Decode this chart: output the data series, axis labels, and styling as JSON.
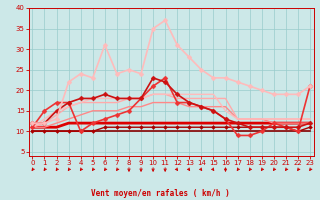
{
  "x": [
    0,
    1,
    2,
    3,
    4,
    5,
    6,
    7,
    8,
    9,
    10,
    11,
    12,
    13,
    14,
    15,
    16,
    17,
    18,
    19,
    20,
    21,
    22,
    23
  ],
  "series": [
    {
      "y": [
        11,
        11,
        11,
        12,
        12,
        12,
        12,
        12,
        12,
        12,
        12,
        12,
        12,
        12,
        12,
        12,
        12,
        12,
        12,
        12,
        12,
        12,
        12,
        12
      ],
      "color": "#dd0000",
      "lw": 2.0,
      "marker": null
    },
    {
      "y": [
        10,
        10,
        10,
        10,
        10,
        10,
        10,
        10,
        10,
        10,
        10,
        10,
        10,
        10,
        10,
        10,
        10,
        10,
        10,
        10,
        10,
        10,
        10,
        10
      ],
      "color": "#880000",
      "lw": 1.2,
      "marker": null
    },
    {
      "y": [
        11,
        11,
        12,
        13,
        14,
        15,
        15,
        15,
        16,
        16,
        17,
        17,
        17,
        16,
        16,
        16,
        16,
        13,
        13,
        13,
        12,
        12,
        12,
        12
      ],
      "color": "#ff8888",
      "lw": 1.0,
      "marker": null
    },
    {
      "y": [
        11,
        12,
        14,
        16,
        17,
        17,
        17,
        17,
        18,
        18,
        19,
        19,
        18,
        18,
        18,
        18,
        18,
        13,
        13,
        13,
        13,
        13,
        13,
        13
      ],
      "color": "#ffaaaa",
      "lw": 1.0,
      "marker": null
    },
    {
      "y": [
        11,
        13,
        15,
        16,
        17,
        18,
        18,
        18,
        18,
        18,
        19,
        19,
        19,
        19,
        19,
        19,
        15,
        13,
        13,
        13,
        13,
        13,
        13,
        13
      ],
      "color": "#ffbbbb",
      "lw": 1.0,
      "marker": null
    },
    {
      "y": [
        10,
        10,
        10,
        10,
        10,
        10,
        11,
        11,
        11,
        11,
        11,
        11,
        11,
        11,
        11,
        11,
        11,
        11,
        11,
        11,
        11,
        11,
        10,
        11
      ],
      "color": "#aa0000",
      "lw": 1.0,
      "marker": "D",
      "ms": 2.0
    },
    {
      "y": [
        11,
        15,
        17,
        17,
        10,
        12,
        13,
        14,
        15,
        18,
        21,
        23,
        17,
        17,
        16,
        15,
        13,
        9,
        9,
        10,
        12,
        11,
        10,
        21
      ],
      "color": "#ee3333",
      "lw": 1.2,
      "marker": "D",
      "ms": 2.5
    },
    {
      "y": [
        12,
        12,
        15,
        17,
        18,
        18,
        19,
        18,
        18,
        18,
        23,
        22,
        19,
        17,
        16,
        15,
        13,
        12,
        11,
        11,
        11,
        11,
        11,
        12
      ],
      "color": "#cc1111",
      "lw": 1.2,
      "marker": "D",
      "ms": 2.5
    },
    {
      "y": [
        12,
        12,
        13,
        22,
        24,
        23,
        31,
        24,
        25,
        24,
        35,
        37,
        31,
        28,
        25,
        23,
        23,
        22,
        21,
        20,
        19,
        19,
        19,
        21
      ],
      "color": "#ffbbbb",
      "lw": 1.2,
      "marker": "D",
      "ms": 2.5
    }
  ],
  "xlim": [
    -0.3,
    23.3
  ],
  "ylim": [
    4,
    40
  ],
  "yticks": [
    5,
    10,
    15,
    20,
    25,
    30,
    35,
    40
  ],
  "xticks": [
    0,
    1,
    2,
    3,
    4,
    5,
    6,
    7,
    8,
    9,
    10,
    11,
    12,
    13,
    14,
    15,
    16,
    17,
    18,
    19,
    20,
    21,
    22,
    23
  ],
  "xlabel": "Vent moyen/en rafales ( km/h )",
  "bg_color": "#cce8e8",
  "grid_color": "#99cccc",
  "axis_color": "#cc0000",
  "label_color": "#cc0000",
  "tick_fontsize": 5.0,
  "xlabel_fontsize": 5.5
}
